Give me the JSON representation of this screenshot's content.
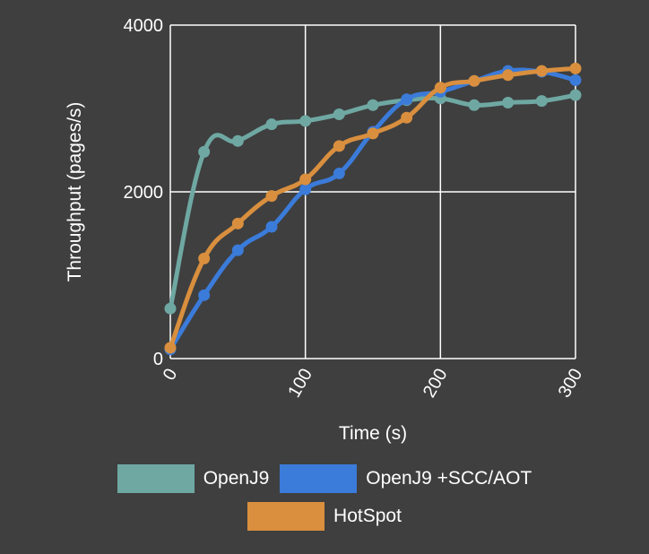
{
  "chart_data": {
    "type": "line",
    "xlabel": "Time (s)",
    "ylabel": "Throughput (pages/s)",
    "xlim": [
      0,
      300
    ],
    "ylim": [
      0,
      4000
    ],
    "xticks": [
      "0",
      "100",
      "200",
      "300"
    ],
    "yticks": [
      "0",
      "2000",
      "4000"
    ],
    "grid": true,
    "legend_position": "bottom",
    "series": [
      {
        "name": "OpenJ9",
        "color": "#6fa8a3",
        "x": [
          0,
          25,
          50,
          75,
          100,
          125,
          150,
          175,
          200,
          225,
          250,
          275,
          300
        ],
        "values": [
          600,
          2480,
          2610,
          2810,
          2850,
          2930,
          3040,
          3100,
          3120,
          3040,
          3070,
          3090,
          3160
        ]
      },
      {
        "name": "OpenJ9 +SCC/AOT",
        "color": "#3b7bd9",
        "x": [
          0,
          25,
          50,
          75,
          100,
          125,
          150,
          175,
          200,
          225,
          250,
          275,
          300
        ],
        "values": [
          110,
          760,
          1300,
          1580,
          2030,
          2220,
          2720,
          3110,
          3200,
          3330,
          3450,
          3440,
          3340
        ]
      },
      {
        "name": "HotSpot",
        "color": "#d98f3e",
        "x": [
          0,
          25,
          50,
          75,
          100,
          125,
          150,
          175,
          200,
          225,
          250,
          275,
          300
        ],
        "values": [
          130,
          1200,
          1620,
          1950,
          2150,
          2550,
          2700,
          2890,
          3250,
          3330,
          3400,
          3450,
          3480
        ]
      }
    ]
  }
}
